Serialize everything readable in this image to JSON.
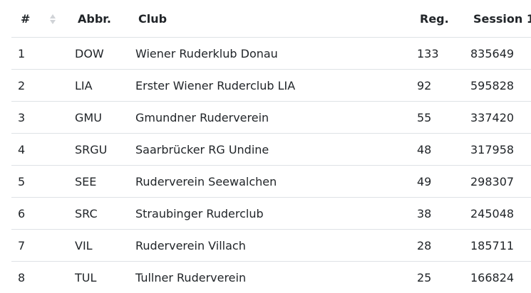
{
  "table": {
    "headers": {
      "rank": "#",
      "abbr": "Abbr.",
      "club": "Club",
      "reg": "Reg.",
      "session1": "Session 1"
    },
    "sort_icon": "sort-arrows-icon",
    "rows": [
      {
        "rank": "1",
        "abbr": "DOW",
        "club": "Wiener Ruderklub Donau",
        "reg": "133",
        "session1": "835649"
      },
      {
        "rank": "2",
        "abbr": "LIA",
        "club": "Erster Wiener Ruderclub LIA",
        "reg": "92",
        "session1": "595828"
      },
      {
        "rank": "3",
        "abbr": "GMU",
        "club": "Gmundner Ruderverein",
        "reg": "55",
        "session1": "337420"
      },
      {
        "rank": "4",
        "abbr": "SRGU",
        "club": "Saarbrücker RG Undine",
        "reg": "48",
        "session1": "317958"
      },
      {
        "rank": "5",
        "abbr": "SEE",
        "club": "Ruderverein Seewalchen",
        "reg": "49",
        "session1": "298307"
      },
      {
        "rank": "6",
        "abbr": "SRC",
        "club": "Straubinger Ruderclub",
        "reg": "38",
        "session1": "245048"
      },
      {
        "rank": "7",
        "abbr": "VIL",
        "club": "Ruderverein Villach",
        "reg": "28",
        "session1": "185711"
      },
      {
        "rank": "8",
        "abbr": "TUL",
        "club": "Tullner Ruderverein",
        "reg": "25",
        "session1": "166824"
      }
    ]
  }
}
